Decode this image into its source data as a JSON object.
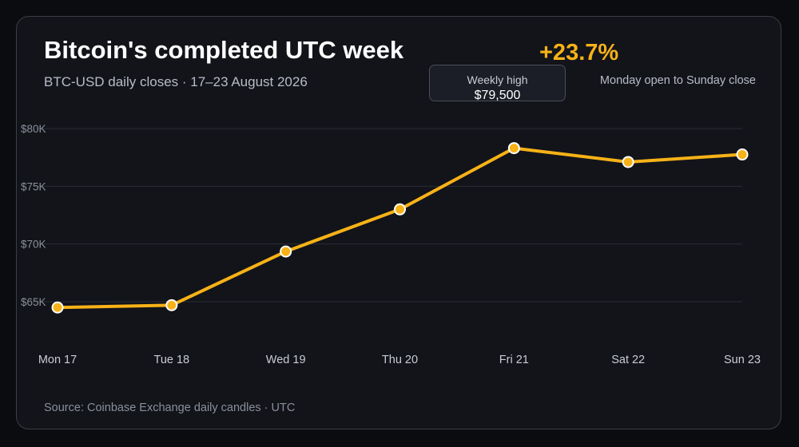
{
  "header": {
    "title": "Bitcoin's completed UTC week",
    "subtitle": "BTC-USD daily closes · 17–23 August 2026",
    "change_value": "+23.7%",
    "change_note": "Monday open to Sunday close"
  },
  "tooltip": {
    "label": "Weekly high",
    "value": "$79,500"
  },
  "footer": {
    "source": "Source: Coinbase Exchange daily candles · UTC"
  },
  "colors": {
    "accent": "#f7b217",
    "grid": "#2a2d35",
    "tick": "#8a8f9a",
    "category": "#c9ccd4",
    "background": "#12141a"
  },
  "chart_data": {
    "type": "line",
    "title": "Bitcoin's completed UTC week",
    "subtitle": "BTC-USD daily closes · 17–23 August 2026",
    "xlabel": "",
    "ylabel": "",
    "categories": [
      "Mon 17",
      "Tue 18",
      "Wed 19",
      "Thu 20",
      "Fri 21",
      "Sat 22",
      "Sun 23"
    ],
    "series": [
      {
        "values": [
          64500,
          64700,
          69350,
          73000,
          78300,
          77100,
          77750
        ]
      }
    ],
    "yticks": [
      65000,
      70000,
      75000,
      80000
    ],
    "ytick_labels": [
      "$65K",
      "$70K",
      "$75K",
      "$80K"
    ],
    "ylim": [
      62000,
      81000
    ],
    "grid": true,
    "annotations": [
      {
        "text": "Weekly high",
        "value": "$79,500",
        "category": "Fri 21"
      }
    ]
  }
}
